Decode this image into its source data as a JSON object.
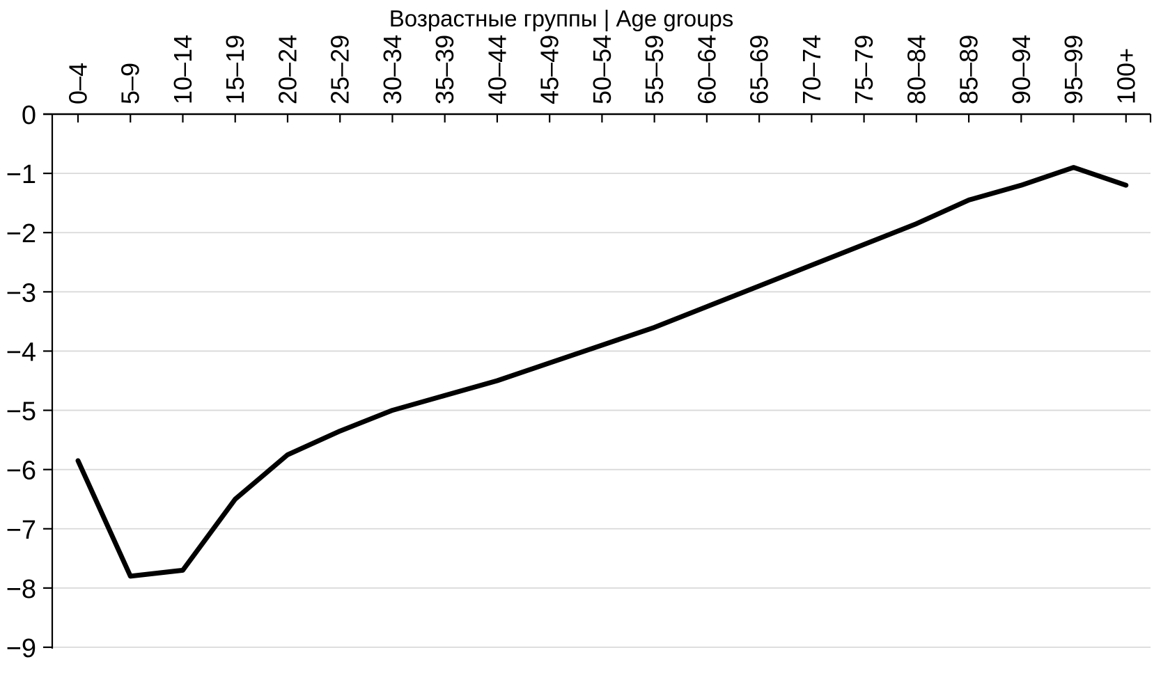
{
  "chart_data": {
    "type": "line",
    "title": "Возрастные группы | Age groups",
    "xlabel": "",
    "ylabel": "",
    "categories": [
      "0–4",
      "5–9",
      "10–14",
      "15–19",
      "20–24",
      "25–29",
      "30–34",
      "35–39",
      "40–44",
      "45–49",
      "50–54",
      "55–59",
      "60–64",
      "65–69",
      "70–74",
      "75–79",
      "80–84",
      "85–89",
      "90–94",
      "95–99",
      "100+"
    ],
    "values": [
      -5.85,
      -7.8,
      -7.7,
      -6.5,
      -5.75,
      -5.35,
      -5.0,
      -4.75,
      -4.5,
      -4.2,
      -3.9,
      -3.6,
      -3.25,
      -2.9,
      -2.55,
      -2.2,
      -1.85,
      -1.45,
      -1.2,
      -0.9,
      -1.2
    ],
    "ylim": [
      -9,
      0
    ],
    "ytick_labels": [
      "0",
      "−1",
      "−2",
      "−3",
      "−4",
      "−5",
      "−6",
      "−7",
      "−8",
      "−9"
    ],
    "ytick_values": [
      0,
      -1,
      -2,
      -3,
      -4,
      -5,
      -6,
      -7,
      -8,
      -9
    ],
    "x_axis_position": "top",
    "x_tick_label_rotation": -90,
    "grid": "horizontal",
    "legend": "none",
    "colors": {
      "line": "#000000",
      "axis": "#000000",
      "gridline": "#d9d9d9",
      "background": "#ffffff"
    }
  }
}
